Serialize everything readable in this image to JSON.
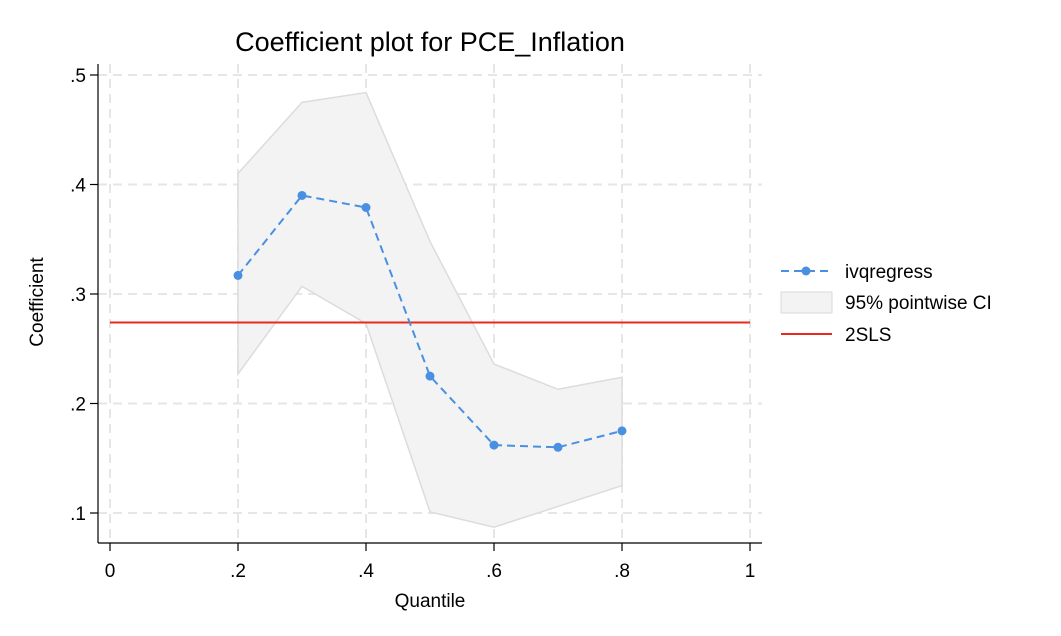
{
  "chart_data": {
    "type": "line",
    "title": "Coefficient plot for PCE_Inflation",
    "xlabel": "Quantile",
    "ylabel": "Coefficient",
    "xlim": [
      0,
      1
    ],
    "ylim": [
      0.08,
      0.51
    ],
    "x_ticks": [
      0,
      0.2,
      0.4,
      0.6,
      0.8,
      1
    ],
    "x_tick_labels": [
      "0",
      ".2",
      ".4",
      ".6",
      ".8",
      "1"
    ],
    "y_ticks": [
      0.1,
      0.2,
      0.3,
      0.4,
      0.5
    ],
    "y_tick_labels": [
      ".1",
      ".2",
      ".3",
      ".4",
      ".5"
    ],
    "grid": true,
    "legend_position": "right",
    "series": [
      {
        "name": "ivqregress",
        "style": "dashed-with-markers",
        "color": "#4a90e2",
        "x": [
          0.2,
          0.3,
          0.4,
          0.5,
          0.6,
          0.7,
          0.8
        ],
        "values": [
          0.317,
          0.39,
          0.379,
          0.225,
          0.162,
          0.16,
          0.175
        ]
      },
      {
        "name": "95% pointwise CI",
        "style": "band",
        "color": "#f3f3f3",
        "x": [
          0.2,
          0.3,
          0.4,
          0.5,
          0.6,
          0.7,
          0.8
        ],
        "upper": [
          0.41,
          0.475,
          0.484,
          0.348,
          0.236,
          0.213,
          0.224
        ],
        "lower": [
          0.227,
          0.307,
          0.273,
          0.101,
          0.087,
          0.106,
          0.125
        ]
      },
      {
        "name": "2SLS",
        "style": "solid",
        "color": "#e8291c",
        "x": [
          0.0,
          1.0
        ],
        "values": [
          0.274,
          0.274
        ]
      }
    ]
  }
}
